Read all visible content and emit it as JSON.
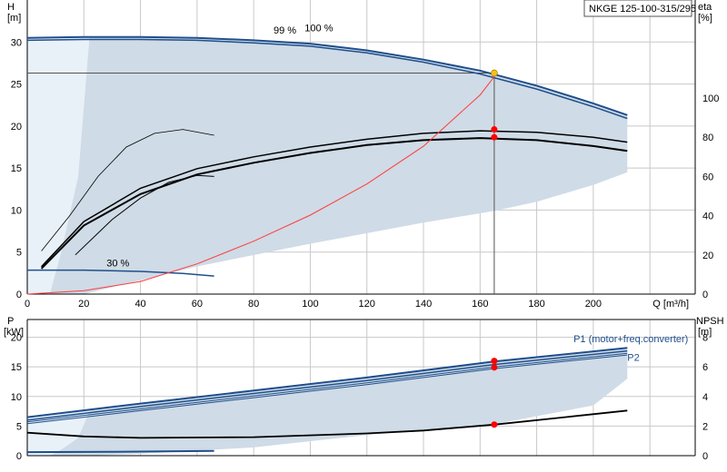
{
  "title_box": "NKGE 125-100-315/295",
  "colors": {
    "grid": "#c8c8c8",
    "area": "#cfdbe6",
    "area_light": "#e9f1f8",
    "pump_curve": "#1f4f8c",
    "efficiency": "#000000",
    "system_curve": "#ff3b3b",
    "op_point": "#ff0000",
    "op_point_top": "#f5c21b",
    "p2_label": "#1f4f8c"
  },
  "chart_data": [
    {
      "type": "line",
      "name": "top-panel",
      "xlabel": "Q [m³/h]",
      "ylabel_left": "H",
      "ylabel_left_unit": "[m]",
      "ylabel_right": "eta",
      "ylabel_right_unit": "[%]",
      "xlim": [
        0,
        236
      ],
      "ylim": [
        0,
        35
      ],
      "yrightlim": [
        0,
        150
      ],
      "xticks": [
        0,
        20,
        40,
        60,
        80,
        100,
        120,
        140,
        160,
        180,
        200
      ],
      "yticks": [
        0,
        5,
        10,
        15,
        20,
        25,
        30
      ],
      "yrightticks": [
        0,
        20,
        40,
        60,
        80,
        100
      ],
      "annotations": [
        {
          "text": "99 %",
          "x": 87,
          "y": 31.0
        },
        {
          "text": "100 %",
          "x": 98,
          "y": 31.3
        },
        {
          "text": "30 %",
          "x": 28,
          "y": 3.3
        }
      ],
      "operating_point": {
        "Q": 165,
        "H": 26.3,
        "eta": 84,
        "eta2": 80
      },
      "hq_100": [
        [
          0,
          30.5
        ],
        [
          20,
          30.6
        ],
        [
          40,
          30.6
        ],
        [
          60,
          30.5
        ],
        [
          80,
          30.2
        ],
        [
          100,
          29.8
        ],
        [
          120,
          29.0
        ],
        [
          140,
          27.9
        ],
        [
          160,
          26.6
        ],
        [
          180,
          24.8
        ],
        [
          200,
          22.7
        ],
        [
          212,
          21.3
        ]
      ],
      "hq_99": [
        [
          0,
          30.2
        ],
        [
          20,
          30.3
        ],
        [
          40,
          30.3
        ],
        [
          60,
          30.2
        ],
        [
          80,
          29.9
        ],
        [
          100,
          29.5
        ],
        [
          120,
          28.7
        ],
        [
          140,
          27.6
        ],
        [
          160,
          26.2
        ],
        [
          180,
          24.4
        ],
        [
          200,
          22.3
        ],
        [
          212,
          20.9
        ]
      ],
      "hq_30": [
        [
          0,
          2.85
        ],
        [
          20,
          2.85
        ],
        [
          40,
          2.7
        ],
        [
          55,
          2.45
        ],
        [
          66,
          2.15
        ]
      ],
      "hq_area_lower": [
        [
          0,
          0
        ],
        [
          20,
          0
        ],
        [
          60,
          3.3
        ],
        [
          100,
          6.0
        ],
        [
          140,
          8.5
        ],
        [
          165,
          9.9
        ],
        [
          180,
          11.0
        ],
        [
          200,
          13.0
        ],
        [
          212,
          14.5
        ]
      ],
      "system_curve": [
        [
          0,
          0
        ],
        [
          20,
          0.4
        ],
        [
          40,
          1.5
        ],
        [
          60,
          3.6
        ],
        [
          80,
          6.3
        ],
        [
          100,
          9.4
        ],
        [
          120,
          13.1
        ],
        [
          140,
          17.6
        ],
        [
          160,
          23.7
        ],
        [
          166,
          26.3
        ]
      ],
      "eta_main": [
        [
          5,
          13
        ],
        [
          20,
          35
        ],
        [
          40,
          51
        ],
        [
          60,
          61
        ],
        [
          80,
          67
        ],
        [
          100,
          72
        ],
        [
          120,
          76
        ],
        [
          140,
          78.5
        ],
        [
          160,
          79.6
        ],
        [
          180,
          78.5
        ],
        [
          200,
          75.5
        ],
        [
          212,
          73
        ]
      ],
      "eta_second": [
        [
          5,
          14
        ],
        [
          20,
          37
        ],
        [
          40,
          54
        ],
        [
          60,
          64
        ],
        [
          80,
          70
        ],
        [
          100,
          75
        ],
        [
          120,
          79
        ],
        [
          140,
          82
        ],
        [
          160,
          83.3
        ],
        [
          180,
          82.5
        ],
        [
          200,
          80
        ],
        [
          212,
          77.5
        ]
      ],
      "eta_mid": [
        [
          17,
          20
        ],
        [
          30,
          38
        ],
        [
          40,
          49
        ],
        [
          50,
          57
        ],
        [
          60,
          60.5
        ],
        [
          66,
          60
        ]
      ],
      "eta_low": [
        [
          5,
          22
        ],
        [
          15,
          40
        ],
        [
          25,
          60
        ],
        [
          35,
          75
        ],
        [
          45,
          82
        ],
        [
          55,
          84
        ],
        [
          66,
          81
        ]
      ]
    },
    {
      "type": "line",
      "name": "bottom-panel",
      "ylabel_left": "P",
      "ylabel_left_unit": "[kW]",
      "ylabel_right": "NPSH",
      "ylabel_right_unit": "[m]",
      "xlim": [
        0,
        236
      ],
      "ylim": [
        0,
        23
      ],
      "yrightlim": [
        0,
        9.2
      ],
      "yticks": [
        0,
        5,
        10,
        15,
        20
      ],
      "yrightticks": [
        0,
        2,
        4,
        6,
        8
      ],
      "labels": {
        "p1": "P1 (motor+freq.converter)",
        "p2": "P2"
      },
      "operating_point": {
        "Q": 165,
        "P1": 16.0,
        "P2": 14.9,
        "NPSH": 2.1
      },
      "p1_upper": [
        [
          0,
          6.5
        ],
        [
          40,
          8.8
        ],
        [
          80,
          11.0
        ],
        [
          120,
          13.2
        ],
        [
          165,
          15.9
        ],
        [
          212,
          18.2
        ]
      ],
      "p1_lower": [
        [
          0,
          6.0
        ],
        [
          40,
          8.3
        ],
        [
          80,
          10.5
        ],
        [
          120,
          12.7
        ],
        [
          165,
          15.4
        ],
        [
          212,
          17.7
        ]
      ],
      "p2_upper": [
        [
          0,
          5.7
        ],
        [
          40,
          7.9
        ],
        [
          80,
          10.1
        ],
        [
          120,
          12.3
        ],
        [
          165,
          15.0
        ],
        [
          212,
          17.3
        ]
      ],
      "p2_lower": [
        [
          0,
          5.4
        ],
        [
          40,
          7.6
        ],
        [
          80,
          9.8
        ],
        [
          120,
          12.0
        ],
        [
          165,
          14.7
        ],
        [
          212,
          17.0
        ]
      ],
      "p_area_lower": [
        [
          0,
          0
        ],
        [
          20,
          0
        ],
        [
          40,
          0.3
        ],
        [
          80,
          1.4
        ],
        [
          120,
          3.5
        ],
        [
          165,
          5.3
        ],
        [
          200,
          8.5
        ],
        [
          212,
          13.0
        ]
      ],
      "p30": [
        [
          0,
          0.6
        ],
        [
          30,
          0.65
        ],
        [
          66,
          0.8
        ]
      ],
      "npsh": [
        [
          0,
          1.55
        ],
        [
          20,
          1.3
        ],
        [
          40,
          1.2
        ],
        [
          80,
          1.25
        ],
        [
          120,
          1.5
        ],
        [
          140,
          1.7
        ],
        [
          165,
          2.1
        ],
        [
          190,
          2.6
        ],
        [
          212,
          3.05
        ]
      ]
    }
  ]
}
